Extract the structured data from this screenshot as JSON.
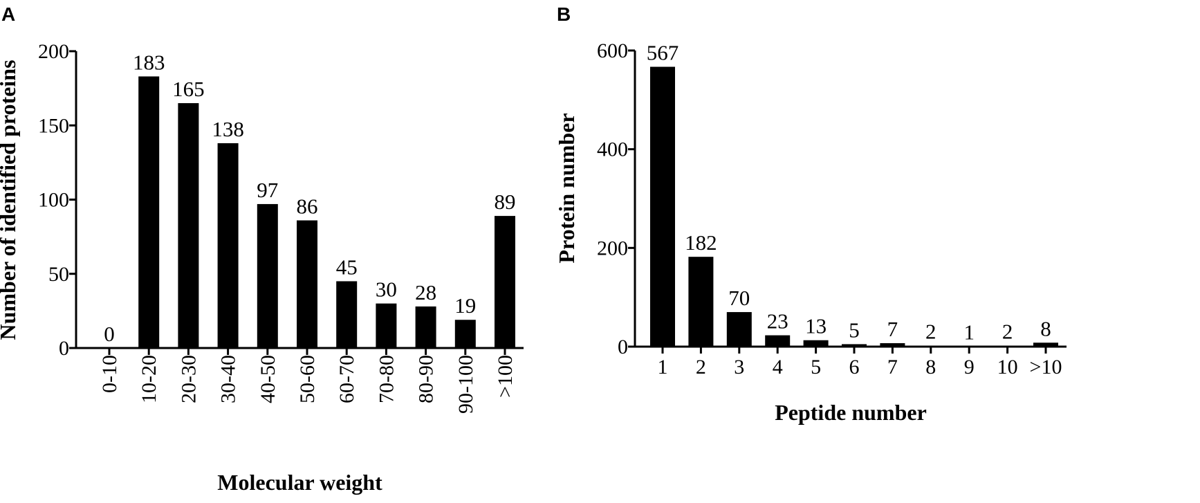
{
  "chart_data": [
    {
      "panel": "A",
      "type": "bar",
      "categories": [
        "0-10",
        "10-20",
        "20-30",
        "30-40",
        "40-50",
        "50-60",
        "60-70",
        "70-80",
        "80-90",
        "90-100",
        ">100"
      ],
      "values": [
        0,
        183,
        165,
        138,
        97,
        86,
        45,
        30,
        28,
        19,
        89
      ],
      "data_labels": [
        "0",
        "183",
        "165",
        "138",
        "97",
        "86",
        "45",
        "30",
        "28",
        "19",
        "89"
      ],
      "yticks": [
        "0",
        "50",
        "100",
        "150",
        "200"
      ],
      "xlabel": "Molecular weight",
      "ylabel": "Number of identified proteins",
      "ylim": [
        0,
        200
      ],
      "bar_color": "#000000",
      "grid": false,
      "legend": "none"
    },
    {
      "panel": "B",
      "type": "bar",
      "categories": [
        "1",
        "2",
        "3",
        "4",
        "5",
        "6",
        "7",
        "8",
        "9",
        "10",
        ">10"
      ],
      "values": [
        567,
        182,
        70,
        23,
        13,
        5,
        7,
        2,
        1,
        2,
        8
      ],
      "data_labels": [
        "567",
        "182",
        "70",
        "23",
        "13",
        "5",
        "7",
        "2",
        "1",
        "2",
        "8"
      ],
      "yticks": [
        "0",
        "200",
        "400",
        "600"
      ],
      "xlabel": "Peptide number",
      "ylabel": "Protein number",
      "ylim": [
        0,
        600
      ],
      "bar_color": "#000000",
      "grid": false,
      "legend": "none"
    }
  ]
}
